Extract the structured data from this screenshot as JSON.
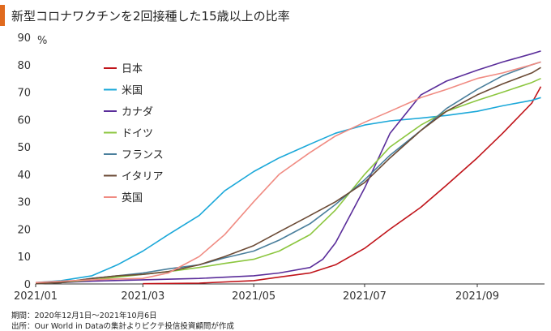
{
  "header": {
    "title": "新型コロナワクチンを2回接種した15歳以上の比率"
  },
  "footer": {
    "period": "期間：2020年12月1日～2021年10月6日",
    "source": "出所：Our World in Dataの集計よりピクテ投信投資顧問が作成"
  },
  "chart_data": {
    "type": "line",
    "title": "新型コロナワクチンを2回接種した15歳以上の比率",
    "ylabel": "%",
    "xlabel": "",
    "ylim": [
      0,
      90
    ],
    "y_ticks": [
      0,
      10,
      20,
      30,
      40,
      50,
      60,
      70,
      80,
      90
    ],
    "x_range": [
      "2021-01-01",
      "2021-10-08"
    ],
    "x_ticks": [
      {
        "date": "2021-01-01",
        "label": "2021/01"
      },
      {
        "date": "2021-03-01",
        "label": "2021/03"
      },
      {
        "date": "2021-05-01",
        "label": "2021/05"
      },
      {
        "date": "2021-07-01",
        "label": "2021/07"
      },
      {
        "date": "2021-09-01",
        "label": "2021/09"
      }
    ],
    "grid": false,
    "legend_position": "top-left",
    "series": [
      {
        "name": "日本",
        "color": "#c0141a",
        "points": [
          [
            "2021-03-01",
            0.1
          ],
          [
            "2021-04-01",
            0.3
          ],
          [
            "2021-05-01",
            1.2
          ],
          [
            "2021-05-15",
            2.5
          ],
          [
            "2021-06-01",
            4
          ],
          [
            "2021-06-15",
            7
          ],
          [
            "2021-07-01",
            13
          ],
          [
            "2021-07-15",
            20
          ],
          [
            "2021-08-01",
            28
          ],
          [
            "2021-08-15",
            36
          ],
          [
            "2021-09-01",
            46
          ],
          [
            "2021-09-15",
            55
          ],
          [
            "2021-10-01",
            66
          ],
          [
            "2021-10-06",
            72
          ]
        ]
      },
      {
        "name": "米国",
        "color": "#1ba8d9",
        "points": [
          [
            "2021-01-01",
            0.5
          ],
          [
            "2021-01-15",
            1.2
          ],
          [
            "2021-02-01",
            3
          ],
          [
            "2021-02-15",
            7
          ],
          [
            "2021-03-01",
            12
          ],
          [
            "2021-03-15",
            18
          ],
          [
            "2021-04-01",
            25
          ],
          [
            "2021-04-15",
            34
          ],
          [
            "2021-05-01",
            41
          ],
          [
            "2021-05-15",
            46
          ],
          [
            "2021-06-01",
            51
          ],
          [
            "2021-06-15",
            55
          ],
          [
            "2021-07-01",
            58
          ],
          [
            "2021-07-15",
            59.5
          ],
          [
            "2021-08-01",
            60.5
          ],
          [
            "2021-08-15",
            61.5
          ],
          [
            "2021-09-01",
            63
          ],
          [
            "2021-09-15",
            65
          ],
          [
            "2021-10-01",
            67
          ],
          [
            "2021-10-06",
            68
          ]
        ]
      },
      {
        "name": "カナダ",
        "color": "#5a2d9a",
        "points": [
          [
            "2021-01-01",
            0.1
          ],
          [
            "2021-02-01",
            1
          ],
          [
            "2021-03-01",
            1.5
          ],
          [
            "2021-04-01",
            2
          ],
          [
            "2021-05-01",
            3
          ],
          [
            "2021-05-15",
            4
          ],
          [
            "2021-06-01",
            6
          ],
          [
            "2021-06-08",
            9
          ],
          [
            "2021-06-15",
            15
          ],
          [
            "2021-07-01",
            35
          ],
          [
            "2021-07-15",
            55
          ],
          [
            "2021-08-01",
            69
          ],
          [
            "2021-08-15",
            74
          ],
          [
            "2021-09-01",
            78
          ],
          [
            "2021-09-15",
            81
          ],
          [
            "2021-10-01",
            84
          ],
          [
            "2021-10-06",
            85
          ]
        ]
      },
      {
        "name": "ドイツ",
        "color": "#8cc63f",
        "points": [
          [
            "2021-01-01",
            0.1
          ],
          [
            "2021-01-15",
            0.5
          ],
          [
            "2021-02-01",
            1.5
          ],
          [
            "2021-02-15",
            2.5
          ],
          [
            "2021-03-01",
            3.5
          ],
          [
            "2021-03-15",
            4.5
          ],
          [
            "2021-04-01",
            6
          ],
          [
            "2021-04-15",
            7.5
          ],
          [
            "2021-05-01",
            9
          ],
          [
            "2021-05-15",
            12
          ],
          [
            "2021-06-01",
            18
          ],
          [
            "2021-06-15",
            27
          ],
          [
            "2021-07-01",
            40
          ],
          [
            "2021-07-15",
            50
          ],
          [
            "2021-08-01",
            58
          ],
          [
            "2021-08-15",
            63
          ],
          [
            "2021-09-01",
            67
          ],
          [
            "2021-09-15",
            70
          ],
          [
            "2021-10-01",
            73.5
          ],
          [
            "2021-10-06",
            75
          ]
        ]
      },
      {
        "name": "フランス",
        "color": "#4a7f9c",
        "points": [
          [
            "2021-01-01",
            0.1
          ],
          [
            "2021-01-15",
            0.5
          ],
          [
            "2021-02-01",
            2
          ],
          [
            "2021-02-15",
            3
          ],
          [
            "2021-03-01",
            4
          ],
          [
            "2021-03-15",
            5.5
          ],
          [
            "2021-04-01",
            7
          ],
          [
            "2021-04-15",
            9.5
          ],
          [
            "2021-05-01",
            12
          ],
          [
            "2021-05-15",
            16
          ],
          [
            "2021-06-01",
            22
          ],
          [
            "2021-06-15",
            29
          ],
          [
            "2021-07-01",
            38
          ],
          [
            "2021-07-15",
            47
          ],
          [
            "2021-08-01",
            56
          ],
          [
            "2021-08-15",
            64
          ],
          [
            "2021-09-01",
            71
          ],
          [
            "2021-09-15",
            76
          ],
          [
            "2021-10-01",
            80
          ],
          [
            "2021-10-06",
            81
          ]
        ]
      },
      {
        "name": "イタリア",
        "color": "#6b4a35",
        "points": [
          [
            "2021-01-01",
            0.1
          ],
          [
            "2021-01-15",
            0.5
          ],
          [
            "2021-02-01",
            2
          ],
          [
            "2021-02-15",
            3
          ],
          [
            "2021-03-01",
            3.5
          ],
          [
            "2021-03-15",
            4.5
          ],
          [
            "2021-04-01",
            7
          ],
          [
            "2021-04-15",
            10
          ],
          [
            "2021-05-01",
            14
          ],
          [
            "2021-05-15",
            19
          ],
          [
            "2021-06-01",
            25
          ],
          [
            "2021-06-15",
            30
          ],
          [
            "2021-07-01",
            37
          ],
          [
            "2021-07-15",
            46
          ],
          [
            "2021-08-01",
            56
          ],
          [
            "2021-08-15",
            63
          ],
          [
            "2021-09-01",
            69
          ],
          [
            "2021-09-15",
            73
          ],
          [
            "2021-10-01",
            77
          ],
          [
            "2021-10-06",
            79
          ]
        ]
      },
      {
        "name": "英国",
        "color": "#f08b82",
        "points": [
          [
            "2021-01-01",
            0.5
          ],
          [
            "2021-01-15",
            1
          ],
          [
            "2021-02-01",
            1.5
          ],
          [
            "2021-02-15",
            1.8
          ],
          [
            "2021-03-01",
            2
          ],
          [
            "2021-03-15",
            4
          ],
          [
            "2021-04-01",
            10
          ],
          [
            "2021-04-15",
            18
          ],
          [
            "2021-05-01",
            30
          ],
          [
            "2021-05-15",
            40
          ],
          [
            "2021-06-01",
            48
          ],
          [
            "2021-06-15",
            54
          ],
          [
            "2021-07-01",
            59
          ],
          [
            "2021-07-15",
            63
          ],
          [
            "2021-08-01",
            68
          ],
          [
            "2021-08-15",
            71
          ],
          [
            "2021-09-01",
            75
          ],
          [
            "2021-09-15",
            77
          ],
          [
            "2021-10-01",
            80
          ],
          [
            "2021-10-06",
            81
          ]
        ]
      }
    ]
  }
}
